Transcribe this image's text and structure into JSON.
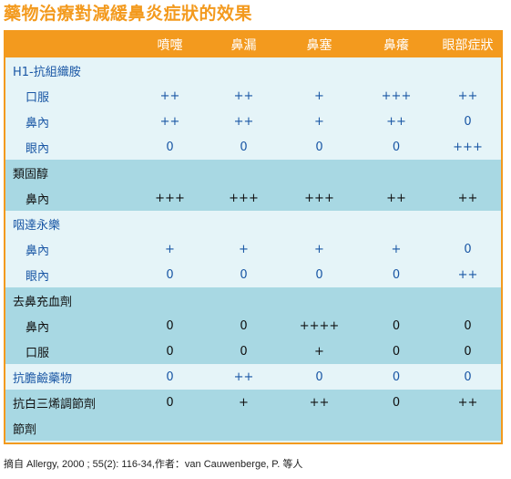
{
  "title": "藥物治療對減緩鼻炎症狀的效果",
  "table": {
    "headers": [
      "",
      "噴嚏",
      "鼻漏",
      "鼻塞",
      "鼻癢",
      "眼部症狀"
    ],
    "rows": [
      {
        "label": "H1-抗組織胺",
        "kind": "cat",
        "group": "light",
        "cells": [
          "",
          "",
          "",
          "",
          ""
        ]
      },
      {
        "label": "口服",
        "kind": "sub",
        "group": "light",
        "cells": [
          "++",
          "++",
          "+",
          "+++",
          "++"
        ]
      },
      {
        "label": "鼻內",
        "kind": "sub",
        "group": "light",
        "cells": [
          "++",
          "++",
          "+",
          "++",
          "0"
        ]
      },
      {
        "label": "眼內",
        "kind": "sub",
        "group": "light",
        "cells": [
          "0",
          "0",
          "0",
          "0",
          "+++"
        ]
      },
      {
        "label": "類固醇",
        "kind": "cat",
        "group": "dark",
        "cells": [
          "",
          "",
          "",
          "",
          ""
        ]
      },
      {
        "label": "鼻內",
        "kind": "sub",
        "group": "dark",
        "cells": [
          "+++",
          "+++",
          "+++",
          "++",
          "++"
        ]
      },
      {
        "label": "咽達永樂",
        "kind": "cat",
        "group": "light",
        "cells": [
          "",
          "",
          "",
          "",
          ""
        ]
      },
      {
        "label": "鼻內",
        "kind": "sub",
        "group": "light",
        "cells": [
          "+",
          "+",
          "+",
          "+",
          "0"
        ]
      },
      {
        "label": "眼內",
        "kind": "sub",
        "group": "light",
        "cells": [
          "0",
          "0",
          "0",
          "0",
          "++"
        ]
      },
      {
        "label": "去鼻充血劑",
        "kind": "cat",
        "group": "dark",
        "cells": [
          "",
          "",
          "",
          "",
          ""
        ]
      },
      {
        "label": "鼻內",
        "kind": "sub",
        "group": "dark",
        "cells": [
          "0",
          "0",
          "++++",
          "0",
          "0"
        ]
      },
      {
        "label": "口服",
        "kind": "sub",
        "group": "dark",
        "cells": [
          "0",
          "0",
          "+",
          "0",
          "0"
        ]
      },
      {
        "label": "抗膽鹼藥物",
        "kind": "cat",
        "group": "light",
        "cells": [
          "0",
          "++",
          "0",
          "0",
          "0"
        ]
      },
      {
        "label": "抗白三烯調節劑",
        "kind": "cat",
        "group": "dark",
        "cells": [
          "0",
          "+",
          "++",
          "0",
          "++"
        ]
      },
      {
        "label": "節劑",
        "kind": "cat",
        "group": "dark",
        "cells": [
          "",
          "",
          "",
          "",
          ""
        ]
      }
    ]
  },
  "footer": "摘自 Allergy, 2000 ; 55(2): 116-34,作者：van Cauwenberge, P. 等人"
}
